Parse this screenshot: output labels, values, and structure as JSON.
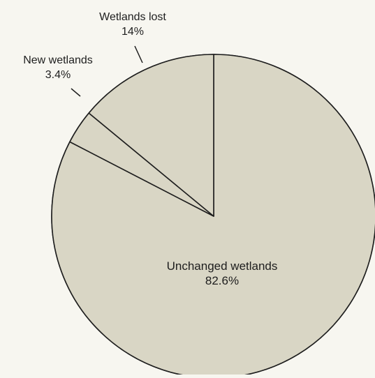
{
  "chart_data": {
    "type": "pie",
    "slices": [
      {
        "label": "Unchanged wetlands",
        "value": 82.6,
        "display": "82.6%"
      },
      {
        "label": "New wetlands",
        "value": 3.4,
        "display": "3.4%"
      },
      {
        "label": "Wetlands lost",
        "value": 14,
        "display": "14%"
      }
    ],
    "start_position": "12 o'clock",
    "direction": "clockwise",
    "legend": "none",
    "colors": {
      "page_background": "#f7f6f0",
      "slice_fill": "#d9d6c5",
      "stroke": "#1e1e1e"
    }
  }
}
